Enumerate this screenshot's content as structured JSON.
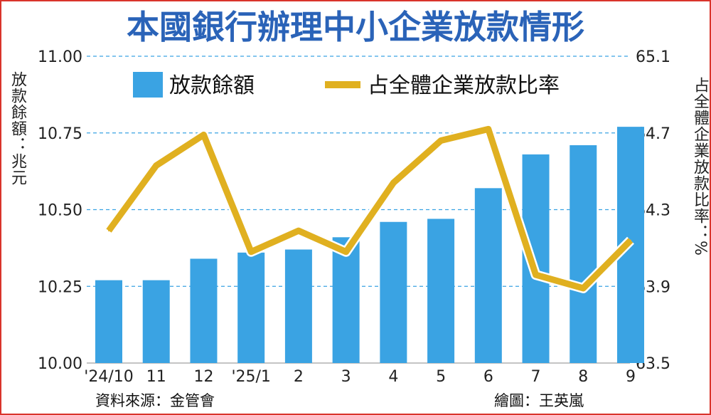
{
  "chart_data": {
    "type": "bar+line",
    "title": "本國銀行辦理中小企業放款情形",
    "categories": [
      "'24/10",
      "11",
      "12",
      "'25/1",
      "2",
      "3",
      "4",
      "5",
      "6",
      "7",
      "8",
      "9"
    ],
    "series": [
      {
        "name": "放款餘額",
        "type": "bar",
        "axis": "left",
        "color": "#3aa3e3",
        "values": [
          10.27,
          10.27,
          10.34,
          10.36,
          10.37,
          10.41,
          10.46,
          10.47,
          10.57,
          10.68,
          10.71,
          10.77
        ]
      },
      {
        "name": "占全體企業放款比率",
        "type": "line",
        "axis": "right",
        "color": "#e0b020",
        "values": [
          64.19,
          64.53,
          64.69,
          64.08,
          64.19,
          64.08,
          64.44,
          64.66,
          64.72,
          63.96,
          63.89,
          64.14
        ]
      }
    ],
    "ylabel": "放款餘額：兆元",
    "ylabel_right": "占全體企業放款比率：%",
    "ylim": [
      10.0,
      11.0
    ],
    "ylim_right": [
      63.5,
      65.1
    ],
    "yticks": [
      "10.00",
      "10.25",
      "10.50",
      "10.75",
      "11.00"
    ],
    "yticks_right": [
      "63.5",
      "63.9",
      "64.3",
      "64.7",
      "65.1"
    ],
    "grid": true,
    "legend_position": "top",
    "source": "資料來源：金管會",
    "credit": "繪圖：王英嵐"
  }
}
